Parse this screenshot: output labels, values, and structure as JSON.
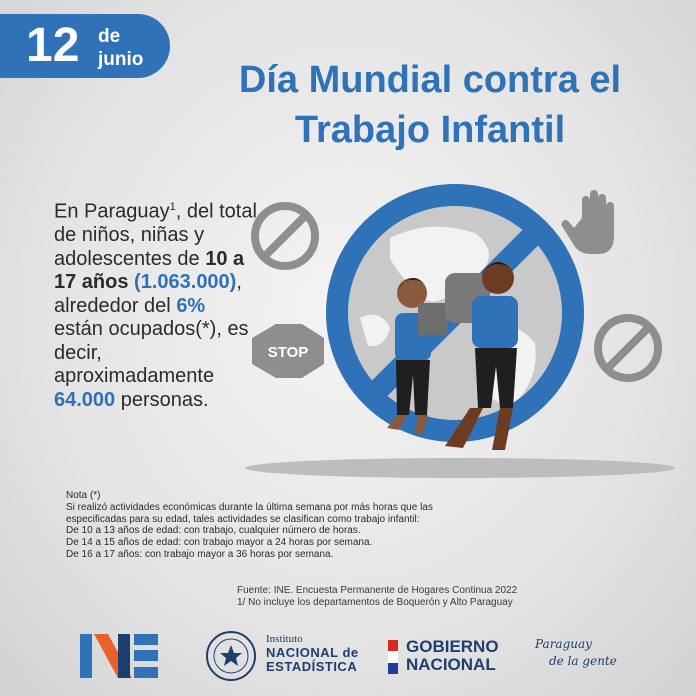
{
  "date_badge": {
    "day": "12",
    "de": "de",
    "month": "junio"
  },
  "title": {
    "line1": "Día Mundial contra el",
    "line2": "Trabajo Infantil"
  },
  "body": {
    "p1": "En Paraguay",
    "sup1": "1",
    "p2": ", del total de niños, niñas y adolescentes de ",
    "age_range": "10 a 17 años",
    "total": "(1.063.000)",
    "p3": ", alrededor del ",
    "percent": "6%",
    "p4": " están ocupados(*), es decir, aproximadamente ",
    "count": "64.000",
    "p5": " personas."
  },
  "illustration": {
    "stop_sign": "STOP"
  },
  "note": {
    "heading": "Nota (*)",
    "lines": [
      "Si realizó actividades económicas durante la última semana por más horas que las",
      "especificadas para su edad, tales actividades se clasifican como trabajo infantil:",
      "De 10 a 13 años de edad: con trabajo, cualquier número de horas.",
      "De 14 a 15 años de edad: con trabajo mayor a 24 horas por semana.",
      "De 16 a 17 años: con trabajo mayor a 36 horas por semana."
    ]
  },
  "source": {
    "line1": "Fuente: INE. Encuesta Permanente de Hogares Continua 2022",
    "line2": "1/ No incluye los departamentos de Boquerón y Alto Paraguay"
  },
  "footer": {
    "ine_label": "NE",
    "institute_small": "Instituto",
    "institute_big1": "NACIONAL de",
    "institute_big2": "ESTADÍSTICA",
    "gov_line1": "GOBIERNO",
    "gov_line2": "NACIONAL",
    "brand_line1": "Paraguay",
    "brand_line2": "de la gente"
  },
  "colors": {
    "accent_blue": "#2f72b8",
    "dark_navy": "#1e3e6e",
    "ine_orange": "#e8612c",
    "flag_red": "#d52b1e"
  }
}
